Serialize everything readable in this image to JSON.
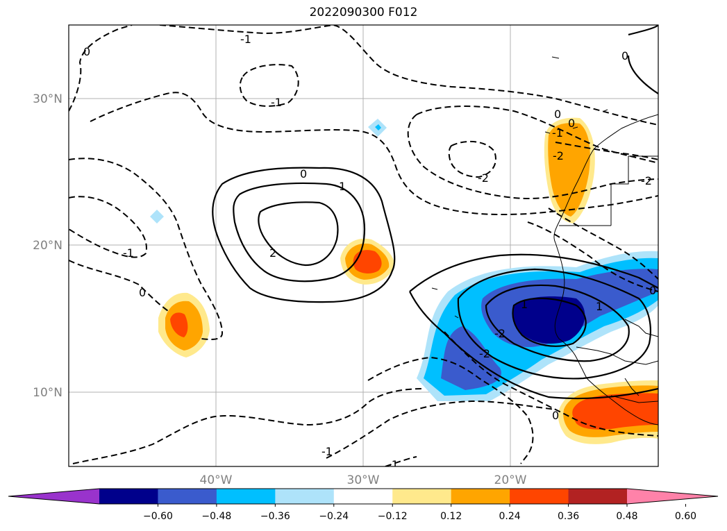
{
  "title": "2022090300 F012",
  "map": {
    "lat_ticks": [
      "30°N",
      "20°N",
      "10°N"
    ],
    "lon_ticks": [
      "40°W",
      "30°W",
      "20°W"
    ]
  },
  "contour_labels": [
    "0",
    "-1",
    "-1",
    "0",
    "-2",
    "-2",
    "-1",
    "-1",
    "0",
    "1",
    "2",
    "0",
    "-1",
    "0",
    "1",
    "-2",
    "-2",
    "0",
    "1",
    "-1",
    "0",
    "-2",
    "0"
  ],
  "colorbar": {
    "tick_labels": [
      "−0.60",
      "−0.48",
      "−0.36",
      "−0.24",
      "−0.12",
      "0.12",
      "0.24",
      "0.36",
      "0.48",
      "0.60"
    ],
    "colors": [
      "#9933cc",
      "#00008b",
      "#3a5bcd",
      "#00bfff",
      "#aee3fa",
      "#ffffff",
      "#ffe98c",
      "#ffa500",
      "#ff4500",
      "#b22222",
      "#ff82a9"
    ]
  }
}
